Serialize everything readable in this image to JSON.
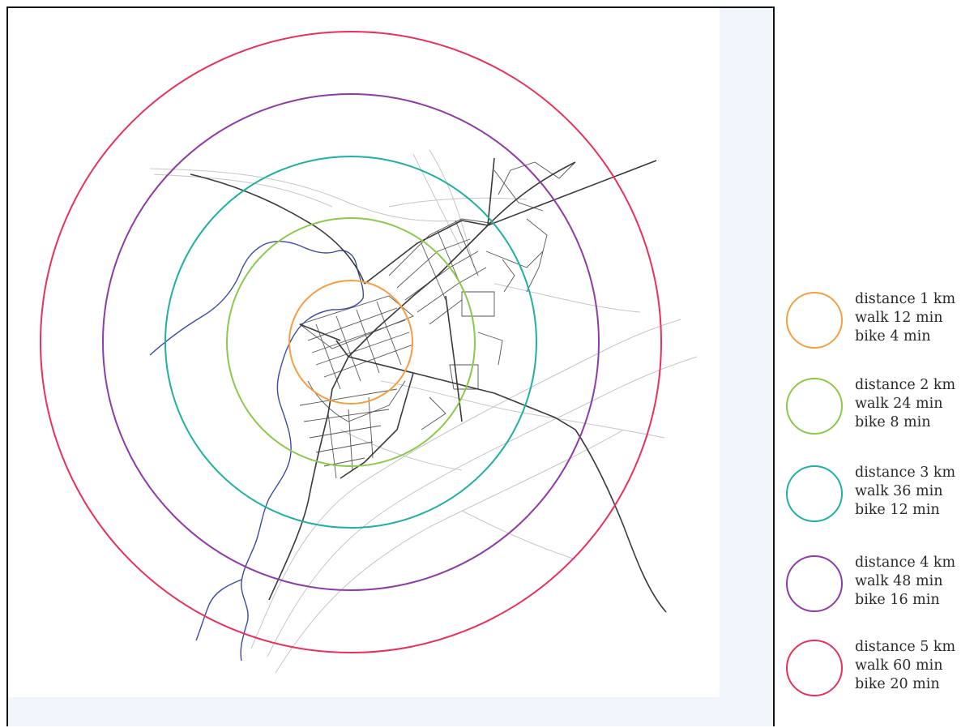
{
  "legend": {
    "items": [
      {
        "distance": "distance 1 km",
        "walk": "walk 12 min",
        "bike": "bike 4 min",
        "color": "#f5a040"
      },
      {
        "distance": "distance 2 km",
        "walk": "walk 24 min",
        "bike": "bike 8 min",
        "color": "#8cc84a"
      },
      {
        "distance": "distance 3 km",
        "walk": "walk 36 min",
        "bike": "bike 12 min",
        "color": "#1fb0a0"
      },
      {
        "distance": "distance 4 km",
        "walk": "walk 48 min",
        "bike": "bike 16 min",
        "color": "#8e3ba6"
      },
      {
        "distance": "distance 5 km",
        "walk": "walk 60 min",
        "bike": "bike 20 min",
        "color": "#e8305a"
      }
    ]
  },
  "map": {
    "road_color": "#3a3a3a",
    "minor_road_color": "#b9b9b9",
    "coastline_color": "#3c4aa6"
  }
}
